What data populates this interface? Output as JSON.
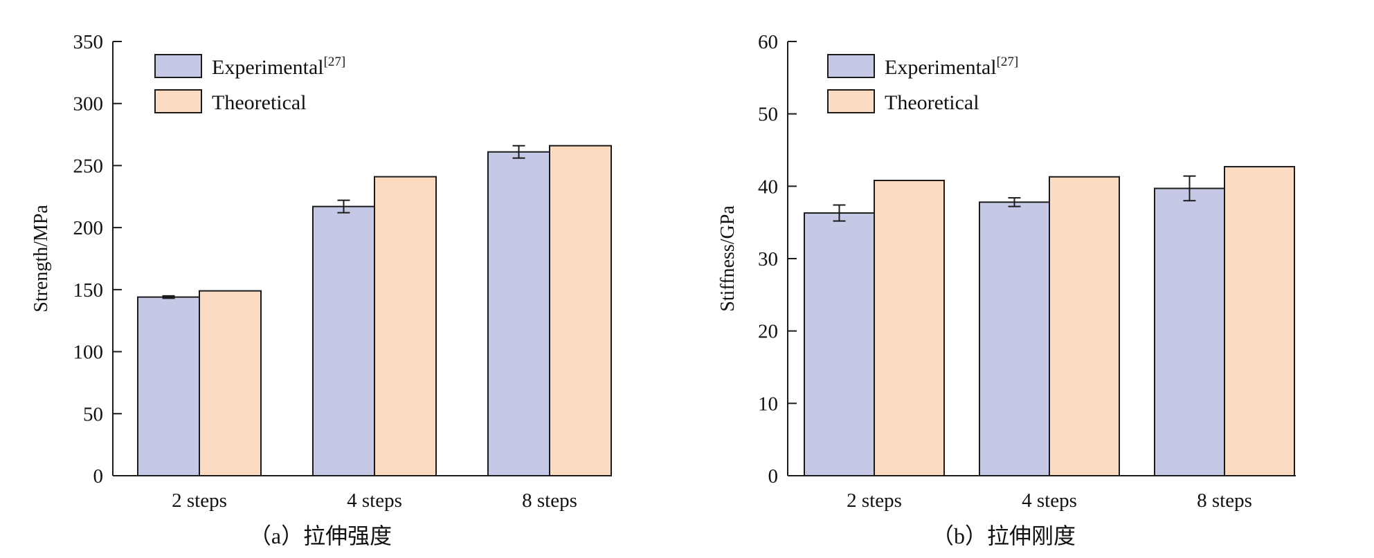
{
  "colors": {
    "experimental": "#c6c9e6",
    "theoretical": "#fddbc1",
    "stroke": "#1a1a1a"
  },
  "chart_data": [
    {
      "type": "bar",
      "panel_label": "（a）拉伸强度",
      "categories": [
        "2 steps",
        "4 steps",
        "8 steps"
      ],
      "ylabel": "Strength/MPa",
      "ylim": [
        0,
        350
      ],
      "yticks": [
        0,
        50,
        100,
        150,
        200,
        250,
        300,
        350
      ],
      "legend_position": "top-left",
      "series": [
        {
          "name": "Experimental",
          "name_sup": "[27]",
          "color": "#c6c9e6",
          "values": [
            144,
            217,
            261
          ],
          "errors": [
            1,
            5,
            5
          ]
        },
        {
          "name": "Theoretical",
          "color": "#fddbc1",
          "values": [
            149,
            241,
            266
          ]
        }
      ]
    },
    {
      "type": "bar",
      "panel_label": "（b）拉伸刚度",
      "categories": [
        "2 steps",
        "4 steps",
        "8 steps"
      ],
      "ylabel": "Stiffness/GPa",
      "ylim": [
        0,
        60
      ],
      "yticks": [
        0,
        10,
        20,
        30,
        40,
        50,
        60
      ],
      "legend_position": "top-left",
      "series": [
        {
          "name": "Experimental",
          "name_sup": "[27]",
          "color": "#c6c9e6",
          "values": [
            36.3,
            37.8,
            39.7
          ],
          "errors": [
            1.1,
            0.6,
            1.7
          ]
        },
        {
          "name": "Theoretical",
          "color": "#fddbc1",
          "values": [
            40.8,
            41.3,
            42.7
          ]
        }
      ]
    }
  ]
}
